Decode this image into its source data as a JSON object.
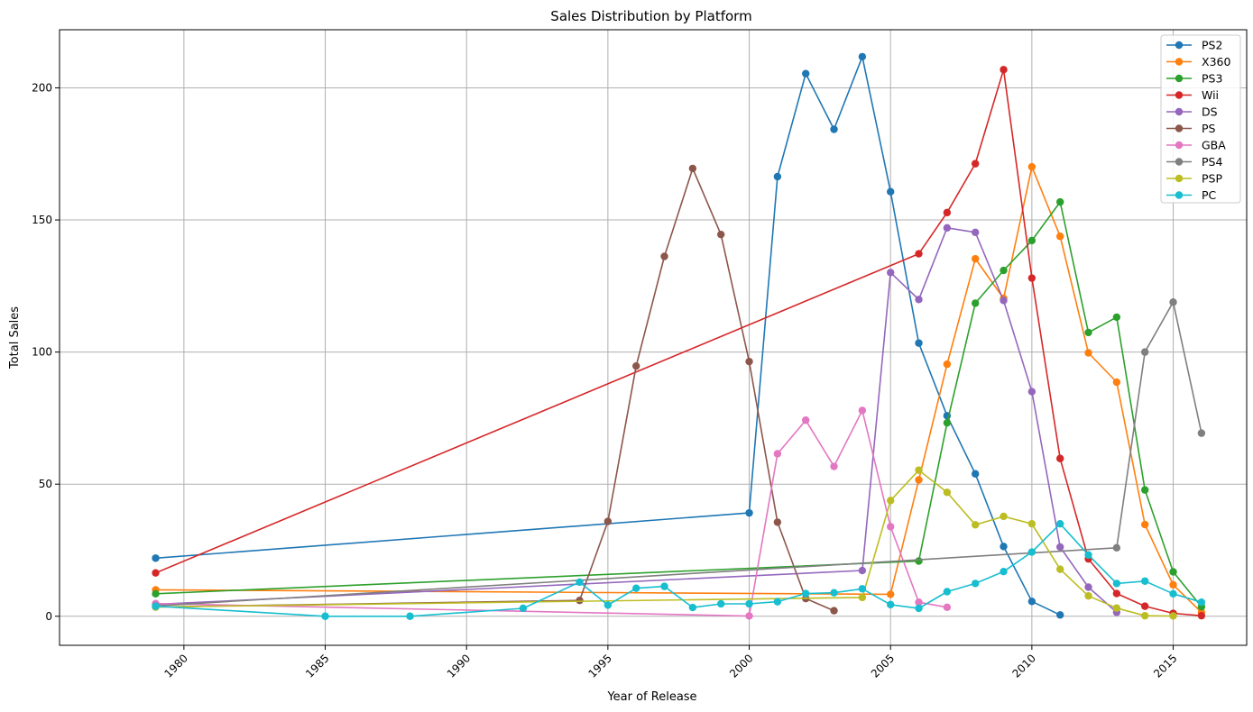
{
  "chart_data": {
    "type": "line",
    "title": "Sales Distribution by Platform",
    "xlabel": "Year of Release",
    "ylabel": "Total Sales",
    "xlim": [
      1975.6,
      2017.6
    ],
    "ylim": [
      -11,
      222
    ],
    "x_ticks": [
      1980,
      1985,
      1990,
      1995,
      2000,
      2005,
      2010,
      2015
    ],
    "y_ticks": [
      0,
      50,
      100,
      150,
      200
    ],
    "grid": true,
    "legend_position": "top-right",
    "series": [
      {
        "name": "PS2",
        "color": "#1f77b4",
        "points": [
          [
            1979,
            22.0
          ],
          [
            2000,
            39.1
          ],
          [
            2001,
            166.4
          ],
          [
            2002,
            205.4
          ],
          [
            2003,
            184.3
          ],
          [
            2004,
            211.8
          ],
          [
            2005,
            160.7
          ],
          [
            2006,
            103.4
          ],
          [
            2007,
            75.9
          ],
          [
            2008,
            53.9
          ],
          [
            2009,
            26.4
          ],
          [
            2010,
            5.6
          ],
          [
            2011,
            0.5
          ]
        ]
      },
      {
        "name": "X360",
        "color": "#ff7f0e",
        "points": [
          [
            1979,
            10.0
          ],
          [
            2005,
            8.3
          ],
          [
            2006,
            51.6
          ],
          [
            2007,
            95.4
          ],
          [
            2008,
            135.3
          ],
          [
            2009,
            120.3
          ],
          [
            2010,
            170.1
          ],
          [
            2011,
            143.8
          ],
          [
            2012,
            99.7
          ],
          [
            2013,
            88.6
          ],
          [
            2014,
            34.7
          ],
          [
            2015,
            11.9
          ],
          [
            2016,
            1.5
          ]
        ]
      },
      {
        "name": "PS3",
        "color": "#2ca02c",
        "points": [
          [
            1979,
            8.5
          ],
          [
            2006,
            20.9
          ],
          [
            2007,
            73.2
          ],
          [
            2008,
            118.5
          ],
          [
            2009,
            130.9
          ],
          [
            2010,
            142.2
          ],
          [
            2011,
            156.8
          ],
          [
            2012,
            107.4
          ],
          [
            2013,
            113.2
          ],
          [
            2014,
            47.8
          ],
          [
            2015,
            16.8
          ],
          [
            2016,
            3.6
          ]
        ]
      },
      {
        "name": "Wii",
        "color": "#d62728",
        "points": [
          [
            1979,
            16.4
          ],
          [
            2006,
            137.2
          ],
          [
            2007,
            152.8
          ],
          [
            2008,
            171.3
          ],
          [
            2009,
            206.9
          ],
          [
            2010,
            128.0
          ],
          [
            2011,
            59.7
          ],
          [
            2012,
            21.7
          ],
          [
            2013,
            8.6
          ],
          [
            2014,
            3.8
          ],
          [
            2015,
            1.1
          ],
          [
            2016,
            0.2
          ]
        ]
      },
      {
        "name": "DS",
        "color": "#9467bd",
        "points": [
          [
            1979,
            4.5
          ],
          [
            2004,
            17.3
          ],
          [
            2005,
            130.1
          ],
          [
            2006,
            119.9
          ],
          [
            2007,
            147.0
          ],
          [
            2008,
            145.3
          ],
          [
            2009,
            119.5
          ],
          [
            2010,
            85.0
          ],
          [
            2011,
            26.2
          ],
          [
            2012,
            11.0
          ],
          [
            2013,
            1.5
          ]
        ]
      },
      {
        "name": "PS",
        "color": "#8c564b",
        "points": [
          [
            1979,
            3.5
          ],
          [
            1994,
            6.0
          ],
          [
            1995,
            35.9
          ],
          [
            1996,
            94.7
          ],
          [
            1997,
            136.2
          ],
          [
            1998,
            169.5
          ],
          [
            1999,
            144.5
          ],
          [
            2000,
            96.4
          ],
          [
            2001,
            35.6
          ],
          [
            2002,
            6.7
          ],
          [
            2003,
            2.1
          ]
        ]
      },
      {
        "name": "GBA",
        "color": "#e377c2",
        "points": [
          [
            1979,
            4.8
          ],
          [
            2000,
            0.1
          ],
          [
            2001,
            61.5
          ],
          [
            2002,
            74.2
          ],
          [
            2003,
            56.7
          ],
          [
            2004,
            77.9
          ],
          [
            2005,
            33.9
          ],
          [
            2006,
            5.3
          ],
          [
            2007,
            3.4
          ]
        ]
      },
      {
        "name": "PS4",
        "color": "#7f7f7f",
        "points": [
          [
            1979,
            3.9
          ],
          [
            2013,
            25.9
          ],
          [
            2014,
            100.0
          ],
          [
            2015,
            118.9
          ],
          [
            2016,
            69.3
          ]
        ]
      },
      {
        "name": "PSP",
        "color": "#bcbd22",
        "points": [
          [
            1979,
            3.5
          ],
          [
            2004,
            7.1
          ],
          [
            2005,
            43.8
          ],
          [
            2006,
            55.3
          ],
          [
            2007,
            46.9
          ],
          [
            2008,
            34.6
          ],
          [
            2009,
            37.8
          ],
          [
            2010,
            35.0
          ],
          [
            2011,
            17.8
          ],
          [
            2012,
            7.7
          ],
          [
            2013,
            3.1
          ],
          [
            2014,
            0.2
          ],
          [
            2015,
            0.1
          ]
        ]
      },
      {
        "name": "PC",
        "color": "#17becf",
        "points": [
          [
            1979,
            3.8
          ],
          [
            1985,
            0.0
          ],
          [
            1988,
            0.0
          ],
          [
            1992,
            3.0
          ],
          [
            1994,
            12.9
          ],
          [
            1995,
            4.2
          ],
          [
            1996,
            10.6
          ],
          [
            1997,
            11.3
          ],
          [
            1998,
            3.3
          ],
          [
            1999,
            4.7
          ],
          [
            2000,
            4.7
          ],
          [
            2001,
            5.5
          ],
          [
            2002,
            8.6
          ],
          [
            2003,
            8.9
          ],
          [
            2004,
            10.4
          ],
          [
            2005,
            4.4
          ],
          [
            2006,
            3.0
          ],
          [
            2007,
            9.3
          ],
          [
            2008,
            12.4
          ],
          [
            2009,
            16.9
          ],
          [
            2010,
            24.3
          ],
          [
            2011,
            35.0
          ],
          [
            2012,
            23.2
          ],
          [
            2013,
            12.4
          ],
          [
            2014,
            13.3
          ],
          [
            2015,
            8.5
          ],
          [
            2016,
            5.3
          ]
        ]
      }
    ]
  }
}
